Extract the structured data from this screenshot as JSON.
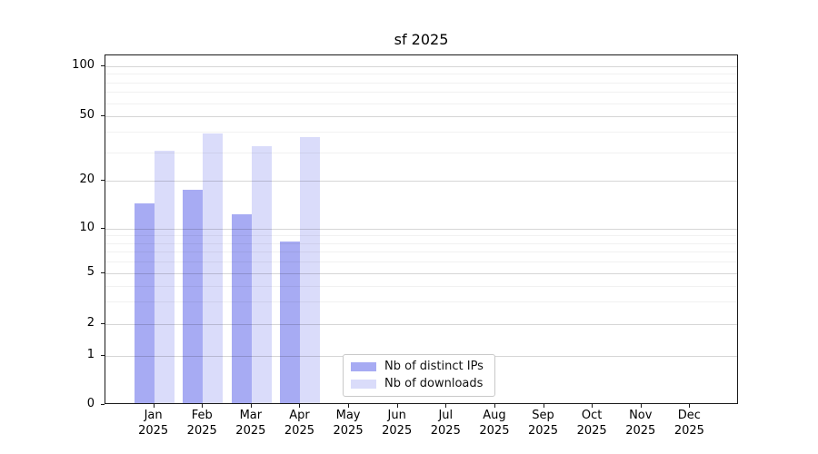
{
  "chart_data": {
    "type": "bar",
    "title": "sf 2025",
    "x_axis": {
      "months": [
        "Jan",
        "Feb",
        "Mar",
        "Apr",
        "May",
        "Jun",
        "Jul",
        "Aug",
        "Sep",
        "Oct",
        "Nov",
        "Dec"
      ],
      "year": "2025"
    },
    "y_axis": {
      "scale": "symlog",
      "range": [
        0,
        100
      ],
      "ticks": [
        100,
        50,
        20,
        10,
        5,
        2,
        1,
        0
      ],
      "minor_gridlines": [
        3,
        4,
        6,
        7,
        8,
        9,
        30,
        40,
        60,
        70,
        80,
        90
      ],
      "major_gridlines": [
        1,
        2,
        5,
        10,
        20,
        50,
        100
      ]
    },
    "series": [
      {
        "name": "Nb of distinct IPs",
        "color": "#a7abf3",
        "values": [
          14,
          17,
          12,
          8,
          null,
          null,
          null,
          null,
          null,
          null,
          null,
          null
        ]
      },
      {
        "name": "Nb of downloads",
        "color": "#dadcfa",
        "values": [
          30,
          38,
          32,
          36,
          null,
          null,
          null,
          null,
          null,
          null,
          null,
          null
        ]
      }
    ],
    "legend": {
      "position": "lower center",
      "entries": [
        "Nb of distinct IPs",
        "Nb of downloads"
      ]
    },
    "grid": true
  },
  "colors": {
    "background": "#ffffff",
    "axis": "#1a1a1a",
    "text": "#000000",
    "grid_minor": "#f0f0f0",
    "grid_major": "#d6d6d6"
  }
}
